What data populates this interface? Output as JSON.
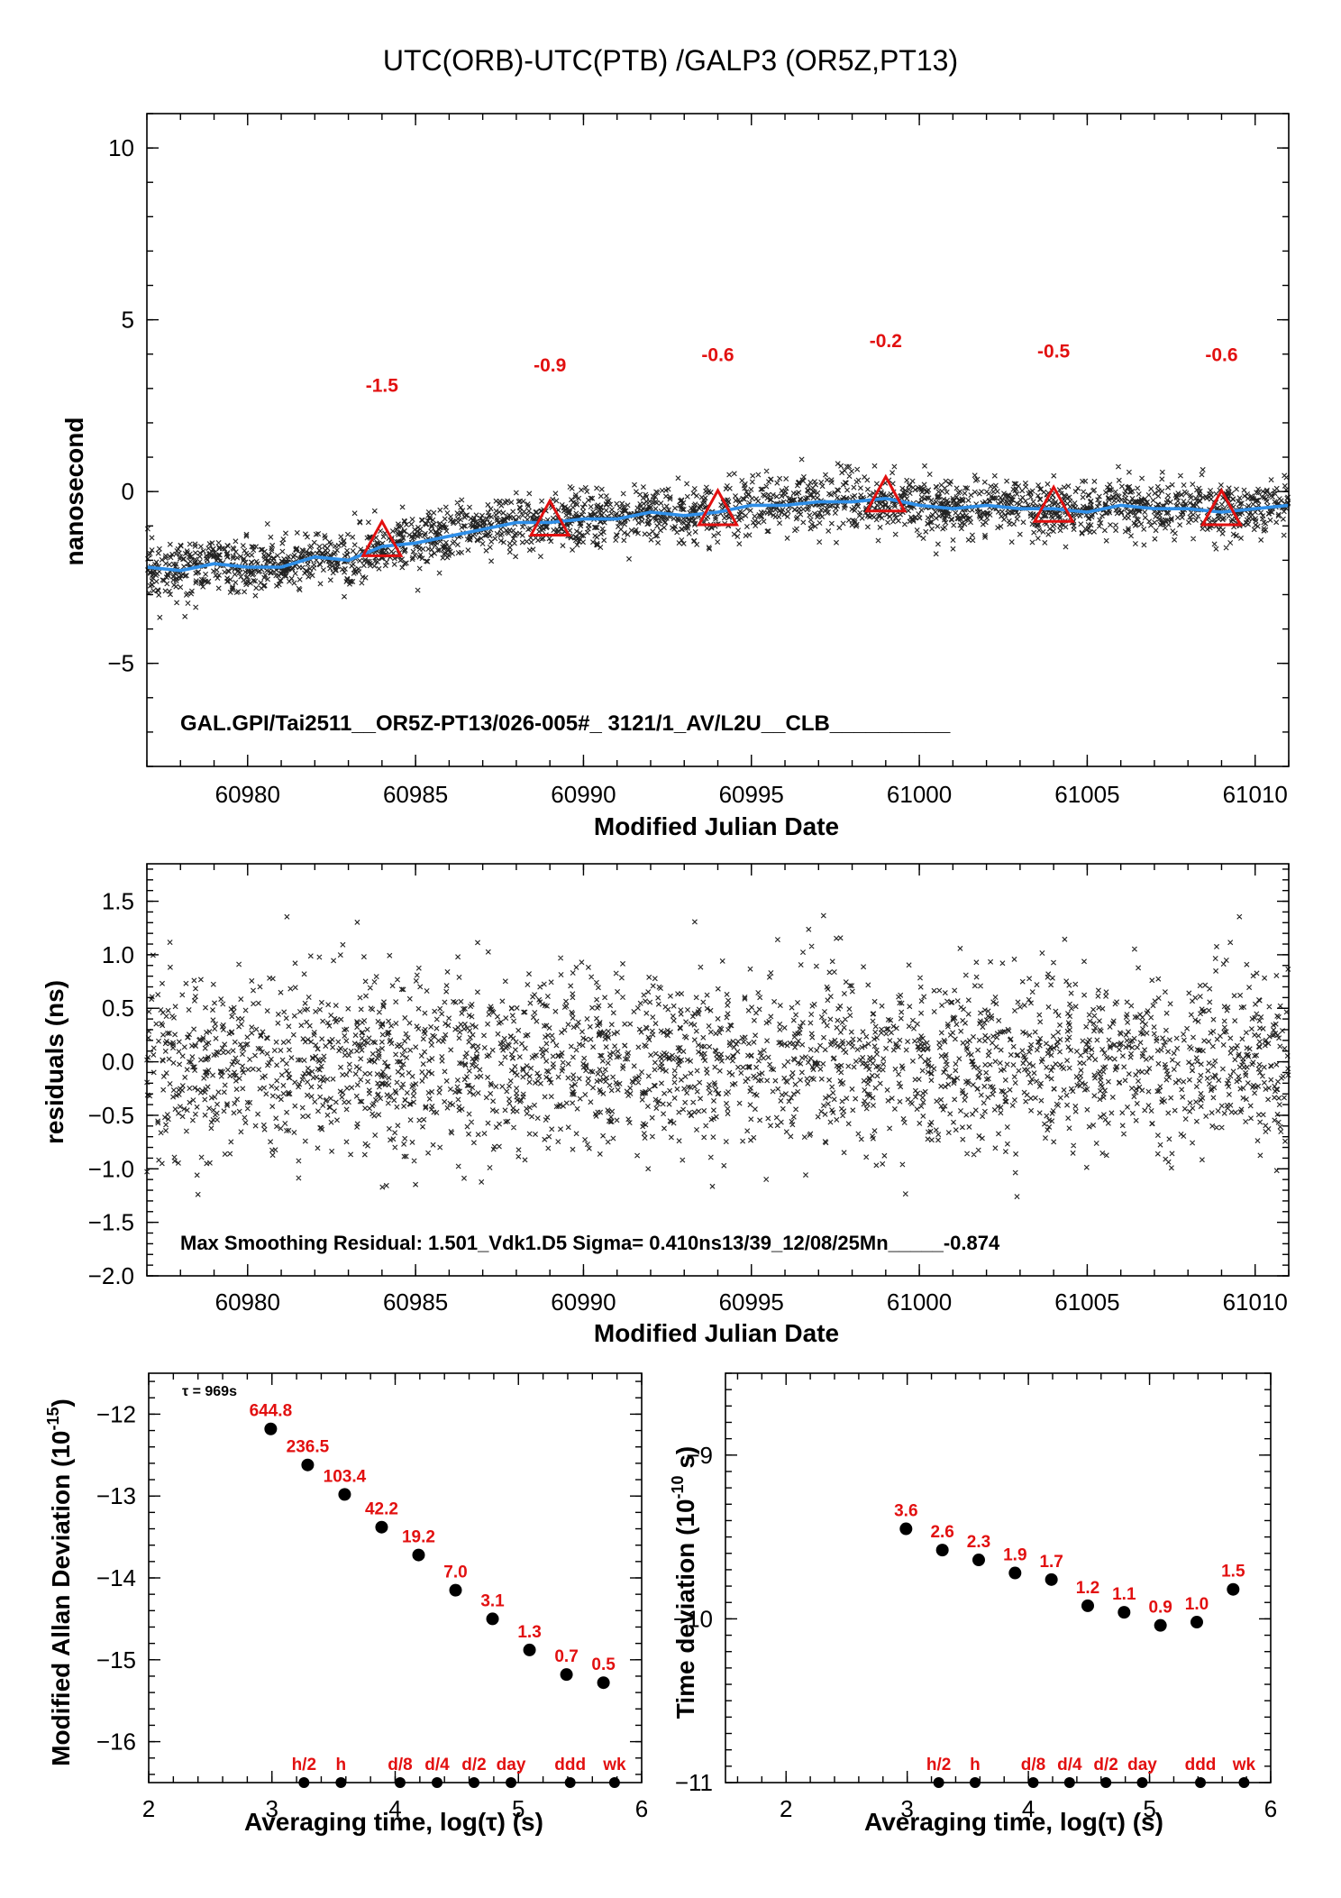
{
  "title": "UTC(ORB)-UTC(PTB)  /GALP3  (OR5Z,PT13)",
  "chart_data": [
    {
      "id": "phase",
      "type": "scatter",
      "xlabel": "Modified Julian Date",
      "ylabel": "nanosecond",
      "xlim": [
        60977,
        61011
      ],
      "ylim": [
        -8,
        11
      ],
      "xticks": [
        "60980",
        "60985",
        "60990",
        "60995",
        "61000",
        "61005",
        "61010"
      ],
      "yticks": [
        "10",
        "5",
        "0",
        "−5"
      ],
      "annotation": "GAL.GPI/Tai2511__OR5Z-PT13/026-005#_  3121/1_AV/L2U__CLB__________",
      "colors": {
        "points": "#000000",
        "smooth": "#2f8fe8",
        "markers": "#e21010"
      },
      "trend": {
        "x": [
          60977,
          60984,
          60989,
          60994,
          60999,
          61004,
          61009,
          61011
        ],
        "y": [
          -2.1,
          -1.5,
          -0.9,
          -0.6,
          -0.2,
          -0.5,
          -0.6,
          -0.4
        ]
      },
      "smooth_curve": {
        "x": [
          60977,
          60978,
          60979,
          60980,
          60981,
          60982,
          60983,
          60984,
          60985,
          60986,
          60987,
          60988,
          60989,
          60990,
          60991,
          60992,
          60993,
          60994,
          60995,
          60996,
          60997,
          60998,
          60999,
          61000,
          61001,
          61002,
          61003,
          61004,
          61005,
          61006,
          61007,
          61008,
          61009,
          61010,
          61011
        ],
        "y": [
          -2.2,
          -2.3,
          -2.1,
          -2.2,
          -2.2,
          -1.9,
          -2.0,
          -1.6,
          -1.5,
          -1.3,
          -1.1,
          -0.9,
          -0.9,
          -0.8,
          -0.8,
          -0.6,
          -0.7,
          -0.6,
          -0.4,
          -0.4,
          -0.3,
          -0.3,
          -0.2,
          -0.4,
          -0.5,
          -0.4,
          -0.5,
          -0.5,
          -0.6,
          -0.4,
          -0.5,
          -0.5,
          -0.6,
          -0.5,
          -0.4
        ]
      },
      "noise_sigma": 0.41,
      "markers": [
        {
          "x": 60984,
          "y": -1.5,
          "label": "-1.5"
        },
        {
          "x": 60989,
          "y": -0.9,
          "label": "-0.9"
        },
        {
          "x": 60994,
          "y": -0.6,
          "label": "-0.6"
        },
        {
          "x": 60999,
          "y": -0.2,
          "label": "-0.2"
        },
        {
          "x": 61004,
          "y": -0.5,
          "label": "-0.5"
        },
        {
          "x": 61009,
          "y": -0.6,
          "label": "-0.6"
        }
      ]
    },
    {
      "id": "residuals",
      "type": "scatter",
      "xlabel": "Modified Julian Date",
      "ylabel": "residuals (ns)",
      "xlim": [
        60977,
        61011
      ],
      "ylim": [
        -2.0,
        1.85
      ],
      "xticks": [
        "60980",
        "60985",
        "60990",
        "60995",
        "61000",
        "61005",
        "61010"
      ],
      "yticks": [
        "1.5",
        "1.0",
        "0.5",
        "0.0",
        "−0.5",
        "−1.0",
        "−1.5",
        "−2.0"
      ],
      "annotation": "Max Smoothing Residual: 1.501_Vdk1.D5  Sigma= 0.410ns13/39_12/08/25Mn_____-0.874",
      "sigma": 0.41
    },
    {
      "id": "mdev",
      "type": "scatter",
      "xlabel": "Averaging time, log(τ) (s)",
      "ylabel": "Modified Allan Deviation (10",
      "ylabel_exp": "-15",
      "ylabel_end": ")",
      "xlim": [
        2,
        6
      ],
      "ylim": [
        -16.5,
        -11.5
      ],
      "xticks": [
        "2",
        "3",
        "4",
        "5",
        "6"
      ],
      "yticks": [
        "−12",
        "−13",
        "−14",
        "−15",
        "−16"
      ],
      "tau_note": "τ = 969s",
      "points": [
        {
          "x": 2.99,
          "y": -12.18,
          "label": "644.8"
        },
        {
          "x": 3.29,
          "y": -12.62,
          "label": "236.5"
        },
        {
          "x": 3.59,
          "y": -12.98,
          "label": "103.4"
        },
        {
          "x": 3.89,
          "y": -13.38,
          "label": "42.2"
        },
        {
          "x": 4.19,
          "y": -13.72,
          "label": "19.2"
        },
        {
          "x": 4.49,
          "y": -14.15,
          "label": "7.0"
        },
        {
          "x": 4.79,
          "y": -14.5,
          "label": "3.1"
        },
        {
          "x": 5.09,
          "y": -14.88,
          "label": "1.3"
        },
        {
          "x": 5.39,
          "y": -15.18,
          "label": "0.7"
        },
        {
          "x": 5.69,
          "y": -15.28,
          "label": "0.5"
        }
      ],
      "interval_marks": [
        {
          "x": 3.26,
          "label": "h/2"
        },
        {
          "x": 3.56,
          "label": "h"
        },
        {
          "x": 4.04,
          "label": "d/8"
        },
        {
          "x": 4.34,
          "label": "d/4"
        },
        {
          "x": 4.64,
          "label": "d/2"
        },
        {
          "x": 4.94,
          "label": "day"
        },
        {
          "x": 5.42,
          "label": "ddd"
        },
        {
          "x": 5.78,
          "label": "wk"
        }
      ]
    },
    {
      "id": "tdev",
      "type": "scatter",
      "xlabel": "Averaging time, log(τ) (s)",
      "ylabel": "Time deviation (10",
      "ylabel_exp": "-10",
      "ylabel_end": " s)",
      "xlim": [
        1.5,
        6
      ],
      "ylim": [
        -11,
        -8.5
      ],
      "xticks": [
        "2",
        "3",
        "4",
        "5",
        "6"
      ],
      "yticks": [
        "−9",
        "−10",
        "−11"
      ],
      "points": [
        {
          "x": 2.99,
          "y": -9.45,
          "label": "3.6"
        },
        {
          "x": 3.29,
          "y": -9.58,
          "label": "2.6"
        },
        {
          "x": 3.59,
          "y": -9.64,
          "label": "2.3"
        },
        {
          "x": 3.89,
          "y": -9.72,
          "label": "1.9"
        },
        {
          "x": 4.19,
          "y": -9.76,
          "label": "1.7"
        },
        {
          "x": 4.49,
          "y": -9.92,
          "label": "1.2"
        },
        {
          "x": 4.79,
          "y": -9.96,
          "label": "1.1"
        },
        {
          "x": 5.09,
          "y": -10.04,
          "label": "0.9"
        },
        {
          "x": 5.39,
          "y": -10.02,
          "label": "1.0"
        },
        {
          "x": 5.69,
          "y": -9.82,
          "label": "1.5"
        }
      ],
      "interval_marks": [
        {
          "x": 3.26,
          "label": "h/2"
        },
        {
          "x": 3.56,
          "label": "h"
        },
        {
          "x": 4.04,
          "label": "d/8"
        },
        {
          "x": 4.34,
          "label": "d/4"
        },
        {
          "x": 4.64,
          "label": "d/2"
        },
        {
          "x": 4.94,
          "label": "day"
        },
        {
          "x": 5.42,
          "label": "ddd"
        },
        {
          "x": 5.78,
          "label": "wk"
        }
      ]
    }
  ]
}
